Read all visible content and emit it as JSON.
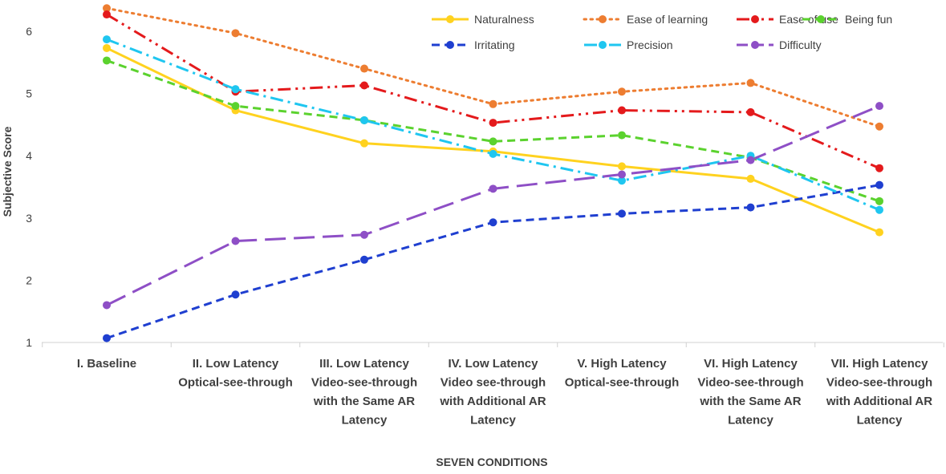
{
  "chart_data": {
    "type": "line",
    "title": "",
    "xlabel": "SEVEN CONDITIONS",
    "ylabel": "Subjective Score",
    "ylim": [
      1,
      6.4
    ],
    "yticks": [
      "1",
      "2",
      "3",
      "4",
      "5",
      "6"
    ],
    "grid": false,
    "legend_position": "top-right",
    "categories": [
      [
        "I. Baseline"
      ],
      [
        "II. Low Latency",
        "Optical-see-through"
      ],
      [
        "III. Low Latency",
        "Video-see-through",
        "with the Same AR",
        "Latency"
      ],
      [
        "IV. Low Latency",
        "Video see-through",
        "with Additional AR",
        "Latency"
      ],
      [
        "V. High Latency",
        "Optical-see-through"
      ],
      [
        "VI. High Latency",
        "Video-see-through",
        "with the Same AR",
        "Latency"
      ],
      [
        "VII. High Latency",
        "Video-see-through",
        "with Additional AR",
        "Latency"
      ]
    ],
    "series": [
      {
        "name": "Naturalness",
        "color": "#FFD21F",
        "dash": "solid",
        "values": [
          5.73,
          4.73,
          4.2,
          4.07,
          3.83,
          3.63,
          2.77
        ]
      },
      {
        "name": "Ease of learning",
        "color": "#ED7D31",
        "dash": "dot",
        "values": [
          6.37,
          5.97,
          5.4,
          4.83,
          5.03,
          5.17,
          4.47
        ]
      },
      {
        "name": "Ease of use",
        "color": "#E41A1C",
        "dash": "dashdotdot",
        "values": [
          6.27,
          5.03,
          5.13,
          4.53,
          4.73,
          4.7,
          3.8
        ]
      },
      {
        "name": "Being fun",
        "color": "#5BD22E",
        "dash": "dash",
        "values": [
          5.53,
          4.8,
          4.57,
          4.23,
          4.33,
          3.97,
          3.27
        ]
      },
      {
        "name": "Irritating",
        "color": "#1F3FD0",
        "dash": "dash",
        "values": [
          1.07,
          1.77,
          2.33,
          2.93,
          3.07,
          3.17,
          3.53
        ]
      },
      {
        "name": "Precision",
        "color": "#1FC6F0",
        "dash": "dashdot",
        "values": [
          5.87,
          5.07,
          4.57,
          4.03,
          3.6,
          4.0,
          3.13
        ]
      },
      {
        "name": "Difficulty",
        "color": "#8E4FC6",
        "dash": "longdash",
        "values": [
          1.6,
          2.63,
          2.73,
          3.47,
          3.7,
          3.93,
          4.8
        ]
      }
    ]
  }
}
